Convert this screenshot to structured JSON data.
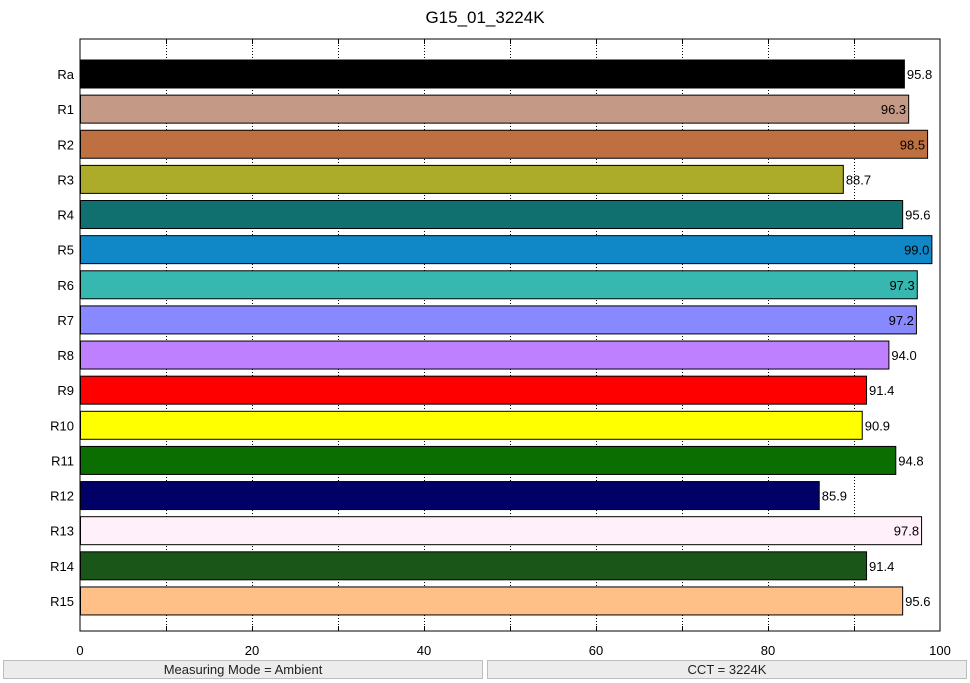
{
  "chart_data": {
    "type": "bar",
    "orientation": "horizontal",
    "title": "G15_01_3224K",
    "xlabel": "",
    "ylabel": "",
    "xlim": [
      0,
      100
    ],
    "xticks": [
      0,
      20,
      40,
      60,
      80,
      100
    ],
    "grid": "vertical dotted lines every 10",
    "categories": [
      "Ra",
      "R1",
      "R2",
      "R3",
      "R4",
      "R5",
      "R6",
      "R7",
      "R8",
      "R9",
      "R10",
      "R11",
      "R12",
      "R13",
      "R14",
      "R15"
    ],
    "values": [
      95.8,
      96.3,
      98.5,
      88.7,
      95.6,
      99.0,
      97.3,
      97.2,
      94.0,
      91.4,
      90.9,
      94.8,
      85.9,
      97.8,
      91.4,
      95.6
    ],
    "value_labels": [
      "95.8",
      "96.3",
      "98.5",
      "88.7",
      "95.6",
      "99.0",
      "97.3",
      "97.2",
      "94.0",
      "91.4",
      "90.9",
      "94.8",
      "85.9",
      "97.8",
      "91.4",
      "95.6"
    ],
    "colors": [
      "#000000",
      "#c49a86",
      "#bf7040",
      "#adab2a",
      "#107070",
      "#1088c8",
      "#36b8b0",
      "#8888ff",
      "#bf80ff",
      "#ff0000",
      "#ffff00",
      "#0a6e00",
      "#000066",
      "#fff0fa",
      "#1a5618",
      "#ffc088"
    ]
  },
  "status": {
    "measuring_mode": "Measuring Mode = Ambient",
    "cct": "CCT = 3224K"
  }
}
